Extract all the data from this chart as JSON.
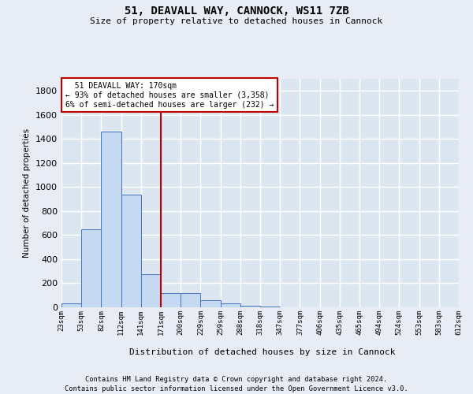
{
  "title": "51, DEAVALL WAY, CANNOCK, WS11 7ZB",
  "subtitle": "Size of property relative to detached houses in Cannock",
  "xlabel": "Distribution of detached houses by size in Cannock",
  "ylabel": "Number of detached properties",
  "footnote1": "Contains HM Land Registry data © Crown copyright and database right 2024.",
  "footnote2": "Contains public sector information licensed under the Open Government Licence v3.0.",
  "bin_labels": [
    "23sqm",
    "53sqm",
    "82sqm",
    "112sqm",
    "141sqm",
    "171sqm",
    "200sqm",
    "229sqm",
    "259sqm",
    "288sqm",
    "318sqm",
    "347sqm",
    "377sqm",
    "406sqm",
    "435sqm",
    "465sqm",
    "494sqm",
    "524sqm",
    "553sqm",
    "583sqm",
    "612sqm"
  ],
  "bar_values": [
    35,
    650,
    1460,
    940,
    275,
    120,
    120,
    60,
    30,
    15,
    5,
    2,
    2,
    0,
    0,
    0,
    0,
    0,
    0,
    0
  ],
  "bar_color": "#c5d9f1",
  "bar_edge_color": "#4472c4",
  "property_line_x": 5,
  "property_line_color": "#c00000",
  "annotation_text": "  51 DEAVALL WAY: 170sqm\n← 93% of detached houses are smaller (3,358)\n6% of semi-detached houses are larger (232) →",
  "annotation_box_color": "#c00000",
  "ylim": [
    0,
    1900
  ],
  "yticks": [
    0,
    200,
    400,
    600,
    800,
    1000,
    1200,
    1400,
    1600,
    1800
  ],
  "bg_color": "#e8edf5",
  "plot_bg_color": "#dce6f1",
  "grid_color": "#ffffff"
}
